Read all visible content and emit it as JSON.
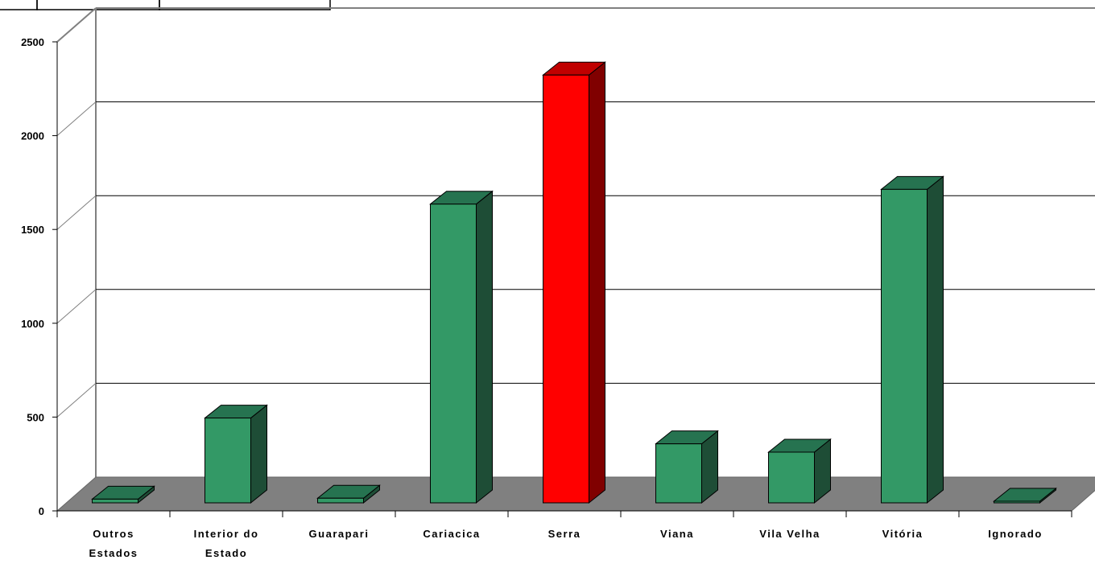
{
  "chart_data": {
    "type": "bar",
    "style": "3d-column",
    "categories": [
      [
        "Outros",
        "Estados"
      ],
      [
        "Interior do",
        "Estado"
      ],
      [
        "Guarapari"
      ],
      [
        "Cariacica"
      ],
      [
        "Serra"
      ],
      [
        "Viana"
      ],
      [
        "Vila Velha"
      ],
      [
        "Vitória"
      ],
      [
        "Ignorado"
      ]
    ],
    "values": [
      20,
      460,
      25,
      1620,
      2320,
      320,
      275,
      1700,
      0
    ],
    "highlight_index": 4,
    "ylim": [
      0,
      2500
    ],
    "yticks": [
      "0",
      "500",
      "1000",
      "1500",
      "2000",
      "2500"
    ],
    "grid": true,
    "title": "",
    "xlabel": "",
    "ylabel": "",
    "colors": {
      "bar_front": "#339966",
      "bar_top": "#267350",
      "bar_side": "#1e4d36",
      "highlight_front": "#ff0000",
      "highlight_top": "#c00000",
      "highlight_side": "#800000",
      "floor": "#808080",
      "wall_line": "#808080",
      "grid": "#000000"
    }
  }
}
